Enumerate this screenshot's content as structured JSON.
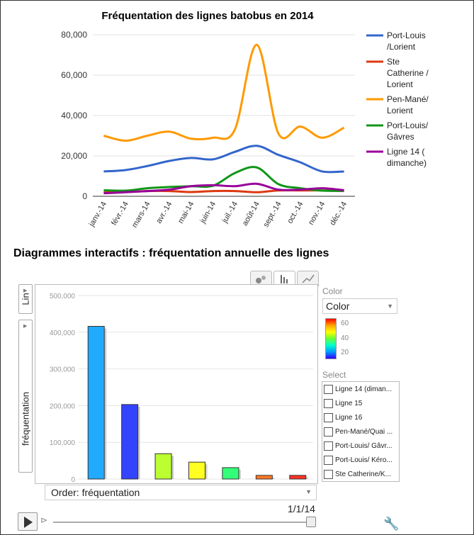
{
  "chart_data": [
    {
      "type": "line",
      "title": "Fréquentation des lignes batobus en 2014",
      "categories": [
        "janv.-14",
        "févr.-14",
        "mars-14",
        "avr.-14",
        "mai-14",
        "juin-14",
        "juil.-14",
        "août-14",
        "sept.-14",
        "oct.-14",
        "nov.-14",
        "déc.-14"
      ],
      "ylim": [
        0,
        80000
      ],
      "yticks": [
        "0",
        "20,000",
        "40,000",
        "60,000",
        "80,000"
      ],
      "grid": true,
      "legend_position": "right",
      "series": [
        {
          "name": "Port-Louis /Lorient",
          "legend_lines": [
            "Port-Louis",
            "/Lorient"
          ],
          "color": "#3366cc",
          "values": [
            12300,
            13000,
            15000,
            17500,
            19000,
            18300,
            22000,
            25000,
            20500,
            16800,
            12300,
            12300
          ]
        },
        {
          "name": "Ste Catherine / Lorient",
          "legend_lines": [
            "Ste",
            "Catherine /",
            "Lorient"
          ],
          "color": "#dc3912",
          "values": [
            1900,
            2100,
            2600,
            2600,
            2100,
            2600,
            2600,
            2000,
            2900,
            2900,
            2900,
            2600
          ]
        },
        {
          "name": "Pen-Mané/ Lorient",
          "legend_lines": [
            "Pen-Mané/",
            "Lorient"
          ],
          "color": "#ff9900",
          "values": [
            30000,
            27500,
            30000,
            32000,
            28500,
            29000,
            33000,
            75000,
            31000,
            34500,
            29000,
            34000
          ]
        },
        {
          "name": "Port-Louis/ Gâvres",
          "legend_lines": [
            "Port-Louis/",
            "Gâvres"
          ],
          "color": "#109618",
          "values": [
            3000,
            2800,
            4000,
            4600,
            5000,
            5200,
            11500,
            14300,
            6000,
            4000,
            2800,
            2700
          ]
        },
        {
          "name": "Ligne 14 ( dimanche)",
          "legend_lines": [
            "Ligne 14 (",
            "dimanche)"
          ],
          "color": "#990099",
          "values": [
            1500,
            2000,
            2600,
            3300,
            5000,
            5500,
            5000,
            6200,
            3300,
            3300,
            4000,
            3000
          ]
        }
      ]
    },
    {
      "type": "bar",
      "title": "Diagrammes interactifs : fréquentation annuelle des lignes",
      "ylabel": "fréquentation",
      "ylim": [
        0,
        500000
      ],
      "yticks": [
        "0",
        "100,000",
        "200,000",
        "300,000",
        "400,000",
        "500,000"
      ],
      "grid": true,
      "values": [
        416000,
        203000,
        69000,
        46000,
        31000,
        10000,
        10000
      ],
      "colors": [
        "#22aaff",
        "#3344ff",
        "#bbff33",
        "#ffff22",
        "#33ff77",
        "#ff7722",
        "#ff3322"
      ]
    }
  ],
  "motion": {
    "y_scale_label": "Lin",
    "y_axis_label": "fréquentation",
    "order_label": "Order: fréquentation",
    "color_label": "Color",
    "color_value": "Color",
    "color_ticks": [
      "60",
      "40",
      "20"
    ],
    "select_label": "Select",
    "select_items": [
      "Ligne 14 (diman...",
      "Ligne 15",
      "Ligne 16",
      "Pen-Mané/Quai ...",
      "Port-Louis/ Gâvr...",
      "Port-Louis/ Kéro...",
      "Ste Catherine/K..."
    ],
    "date": "1/1/14"
  }
}
